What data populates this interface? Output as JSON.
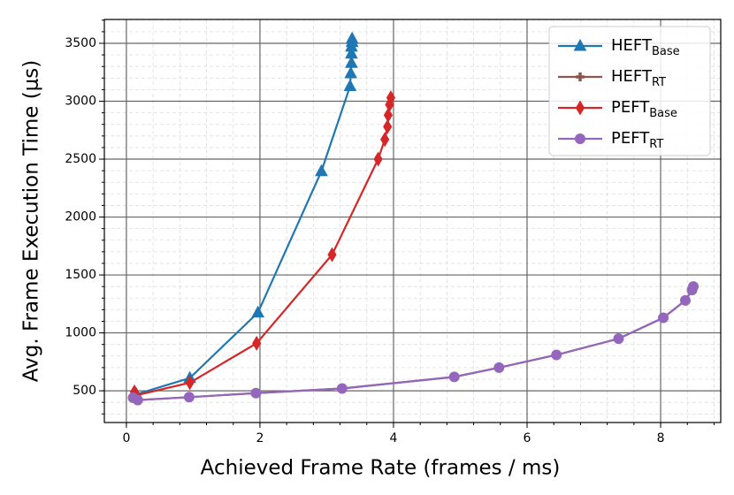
{
  "chart_data": {
    "type": "line",
    "xlabel": "Achieved Frame Rate (frames / ms)",
    "ylabel": "Avg. Frame Execution Time (μs)",
    "xlim": [
      -0.33,
      8.9
    ],
    "xticks": [
      0,
      2,
      4,
      6,
      8
    ],
    "ylim": [
      226,
      3706
    ],
    "yticks": [
      500,
      1000,
      1500,
      2000,
      2500,
      3000,
      3500
    ],
    "grid": true,
    "minor_grid": true,
    "legend": "upper right",
    "series": [
      {
        "name": "HEFT",
        "name_sub": "Base",
        "color": "#1f77b4",
        "marker": "triangle",
        "x": [
          0.15,
          0.95,
          1.97,
          2.92,
          3.35,
          3.36,
          3.37,
          3.37,
          3.37,
          3.38,
          3.38
        ],
        "values": [
          470,
          610,
          1175,
          2395,
          3130,
          3240,
          3330,
          3410,
          3470,
          3510,
          3540
        ]
      },
      {
        "name": "HEFT",
        "name_sub": "RT",
        "color": "#8c564b",
        "marker": "plus",
        "x": [
          0.1,
          0.17,
          0.94,
          1.94,
          3.23,
          4.91,
          5.58,
          6.44,
          7.37,
          8.04,
          8.37,
          8.47,
          8.49
        ],
        "values": [
          440,
          420,
          445,
          480,
          520,
          620,
          700,
          810,
          950,
          1130,
          1280,
          1370,
          1400
        ]
      },
      {
        "name": "PEFT",
        "name_sub": "Base",
        "color": "#d62728",
        "marker": "diamond",
        "x": [
          0.12,
          0.14,
          0.95,
          1.95,
          3.08,
          3.77,
          3.87,
          3.91,
          3.92,
          3.94,
          3.96
        ],
        "values": [
          490,
          460,
          570,
          910,
          1675,
          2500,
          2670,
          2780,
          2880,
          2970,
          3030
        ]
      },
      {
        "name": "PEFT",
        "name_sub": "RT",
        "color": "#9467bd",
        "marker": "circle",
        "x": [
          0.1,
          0.17,
          0.94,
          1.94,
          3.23,
          4.91,
          5.58,
          6.44,
          7.37,
          8.04,
          8.37,
          8.47,
          8.49
        ],
        "values": [
          440,
          420,
          445,
          480,
          520,
          620,
          700,
          810,
          950,
          1130,
          1280,
          1370,
          1400
        ]
      }
    ]
  }
}
